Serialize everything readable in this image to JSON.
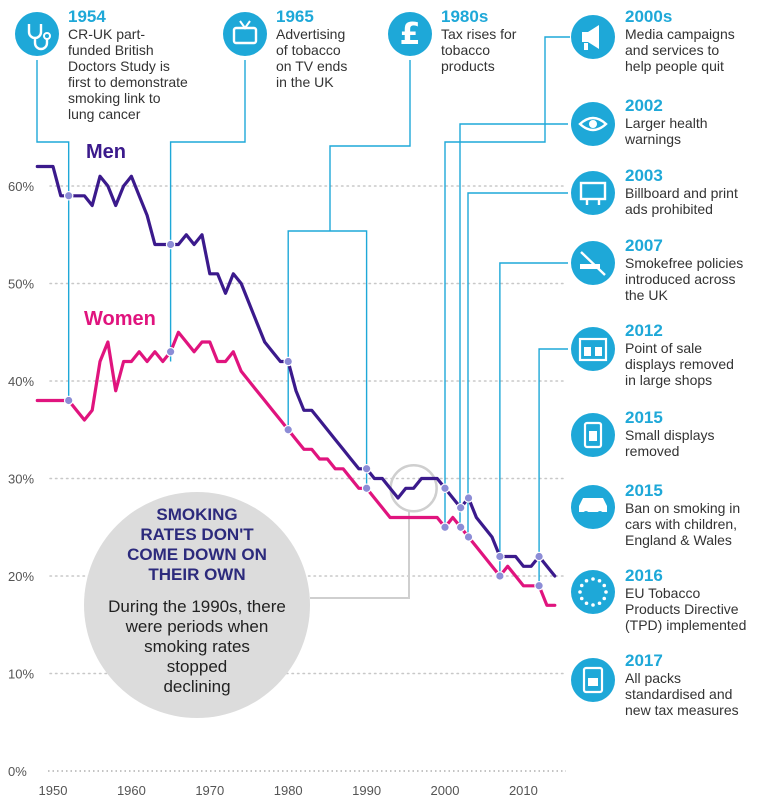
{
  "chart_data": {
    "type": "line",
    "x_ticks": [
      "1950",
      "1960",
      "1970",
      "1980",
      "1990",
      "2000",
      "2010"
    ],
    "y_ticks": [
      "0%",
      "10%",
      "20%",
      "30%",
      "40%",
      "50%",
      "60%"
    ],
    "ylim": [
      0,
      60
    ],
    "xlim": [
      1950,
      2015
    ],
    "grid": true,
    "series": [
      {
        "name": "Men",
        "color": "#3b1a8c",
        "points": [
          [
            1948,
            62
          ],
          [
            1949,
            62
          ],
          [
            1950,
            62
          ],
          [
            1951,
            59
          ],
          [
            1952,
            59
          ],
          [
            1953,
            59
          ],
          [
            1954,
            59
          ],
          [
            1955,
            58
          ],
          [
            1956,
            61
          ],
          [
            1957,
            60
          ],
          [
            1958,
            58
          ],
          [
            1959,
            60
          ],
          [
            1960,
            61
          ],
          [
            1961,
            59
          ],
          [
            1962,
            57
          ],
          [
            1963,
            54
          ],
          [
            1964,
            54
          ],
          [
            1965,
            54
          ],
          [
            1966,
            54
          ],
          [
            1967,
            55
          ],
          [
            1968,
            54
          ],
          [
            1969,
            55
          ],
          [
            1970,
            51
          ],
          [
            1971,
            51
          ],
          [
            1972,
            49
          ],
          [
            1973,
            51
          ],
          [
            1974,
            50
          ],
          [
            1975,
            48
          ],
          [
            1976,
            46
          ],
          [
            1977,
            44
          ],
          [
            1978,
            43
          ],
          [
            1979,
            42
          ],
          [
            1980,
            42
          ],
          [
            1981,
            39
          ],
          [
            1982,
            37
          ],
          [
            1983,
            37
          ],
          [
            1984,
            36
          ],
          [
            1985,
            35
          ],
          [
            1986,
            34
          ],
          [
            1987,
            33
          ],
          [
            1988,
            32
          ],
          [
            1989,
            31
          ],
          [
            1990,
            31
          ],
          [
            1991,
            30
          ],
          [
            1992,
            30
          ],
          [
            1993,
            29
          ],
          [
            1994,
            28
          ],
          [
            1995,
            29
          ],
          [
            1996,
            29
          ],
          [
            1997,
            30
          ],
          [
            1998,
            30
          ],
          [
            1999,
            30
          ],
          [
            2000,
            29
          ],
          [
            2001,
            28
          ],
          [
            2002,
            27
          ],
          [
            2003,
            28
          ],
          [
            2004,
            26
          ],
          [
            2005,
            25
          ],
          [
            2006,
            24
          ],
          [
            2007,
            22
          ],
          [
            2008,
            22
          ],
          [
            2009,
            22
          ],
          [
            2010,
            21
          ],
          [
            2011,
            21
          ],
          [
            2012,
            22
          ],
          [
            2013,
            21
          ],
          [
            2014,
            20
          ]
        ]
      },
      {
        "name": "Women",
        "color": "#e0147e",
        "points": [
          [
            1948,
            38
          ],
          [
            1949,
            38
          ],
          [
            1950,
            38
          ],
          [
            1951,
            38
          ],
          [
            1952,
            38
          ],
          [
            1953,
            37
          ],
          [
            1954,
            36
          ],
          [
            1955,
            37
          ],
          [
            1956,
            42
          ],
          [
            1957,
            44
          ],
          [
            1958,
            39
          ],
          [
            1959,
            42
          ],
          [
            1960,
            42
          ],
          [
            1961,
            43
          ],
          [
            1962,
            42
          ],
          [
            1963,
            43
          ],
          [
            1964,
            42
          ],
          [
            1965,
            43
          ],
          [
            1966,
            45
          ],
          [
            1967,
            44
          ],
          [
            1968,
            43
          ],
          [
            1969,
            44
          ],
          [
            1970,
            44
          ],
          [
            1971,
            42
          ],
          [
            1972,
            42
          ],
          [
            1973,
            43
          ],
          [
            1974,
            41
          ],
          [
            1975,
            40
          ],
          [
            1976,
            39
          ],
          [
            1977,
            38
          ],
          [
            1978,
            37
          ],
          [
            1979,
            36
          ],
          [
            1980,
            35
          ],
          [
            1981,
            34
          ],
          [
            1982,
            33
          ],
          [
            1983,
            33
          ],
          [
            1984,
            32
          ],
          [
            1985,
            32
          ],
          [
            1986,
            31
          ],
          [
            1987,
            31
          ],
          [
            1988,
            30
          ],
          [
            1989,
            29
          ],
          [
            1990,
            29
          ],
          [
            1991,
            28
          ],
          [
            1992,
            27
          ],
          [
            1993,
            26
          ],
          [
            1994,
            26
          ],
          [
            1995,
            26
          ],
          [
            1996,
            26
          ],
          [
            1997,
            26
          ],
          [
            1998,
            26
          ],
          [
            1999,
            26
          ],
          [
            2000,
            25
          ],
          [
            2001,
            26
          ],
          [
            2002,
            25
          ],
          [
            2003,
            24
          ],
          [
            2004,
            23
          ],
          [
            2005,
            22
          ],
          [
            2006,
            21
          ],
          [
            2007,
            20
          ],
          [
            2008,
            21
          ],
          [
            2009,
            20
          ],
          [
            2010,
            19
          ],
          [
            2011,
            19
          ],
          [
            2012,
            19
          ],
          [
            2013,
            17
          ],
          [
            2014,
            17
          ]
        ]
      }
    ],
    "events": [
      {
        "year": "1954",
        "text": [
          "CR-UK part-",
          "funded British",
          "Doctors Study is",
          "first to demonstrate",
          "smoking link to",
          "lung cancer"
        ],
        "icon": "stethoscope-icon",
        "x": 1952
      },
      {
        "year": "1965",
        "text": [
          "Advertising",
          "of tobacco",
          "on TV ends",
          "in the UK"
        ],
        "icon": "tv-icon",
        "x": 1965
      },
      {
        "year": "1980s",
        "text": [
          "Tax rises for",
          "tobacco",
          "products"
        ],
        "icon": "pound-icon",
        "x": 1980
      },
      {
        "year": "2000s",
        "text": [
          "Media campaigns",
          "and services to",
          "help people quit"
        ],
        "icon": "megaphone-icon",
        "x": 2000
      },
      {
        "year": "2002",
        "text": [
          "Larger health",
          "warnings"
        ],
        "icon": "eye-icon",
        "x": 2002
      },
      {
        "year": "2003",
        "text": [
          "Billboard and print",
          "ads prohibited"
        ],
        "icon": "billboard-icon",
        "x": 2003
      },
      {
        "year": "2007",
        "text": [
          "Smokefree policies",
          "introduced across",
          "the UK"
        ],
        "icon": "no-smoking-icon",
        "x": 2007
      },
      {
        "year": "2012",
        "text": [
          "Point of sale",
          "displays removed",
          "in large shops"
        ],
        "icon": "shop-display-icon",
        "x": 2012
      },
      {
        "year": "2015",
        "text": [
          "Small displays",
          "removed"
        ],
        "icon": "small-display-icon",
        "x": null
      },
      {
        "year": "2015",
        "text": [
          "Ban on smoking in",
          "cars with children,",
          "England & Wales"
        ],
        "icon": "car-icon",
        "x": null
      },
      {
        "year": "2016",
        "text": [
          "EU Tobacco",
          "Products Directive",
          "(TPD) implemented"
        ],
        "icon": "eu-stars-icon",
        "x": null
      },
      {
        "year": "2017",
        "text": [
          "All packs",
          "standardised and",
          "new tax measures"
        ],
        "icon": "cigarette-pack-icon",
        "x": null
      }
    ],
    "callout": {
      "title": [
        "SMOKING",
        "RATES DON'T",
        "COME DOWN ON",
        "THEIR OWN"
      ],
      "text": [
        "During the 1990s, there",
        "were periods when",
        "smoking rates",
        "stopped",
        "declining"
      ]
    },
    "colors": {
      "accent": "#1ea8d8",
      "men": "#3b1a8c",
      "women": "#e0147e",
      "bubble": "#dcdcdc"
    }
  }
}
